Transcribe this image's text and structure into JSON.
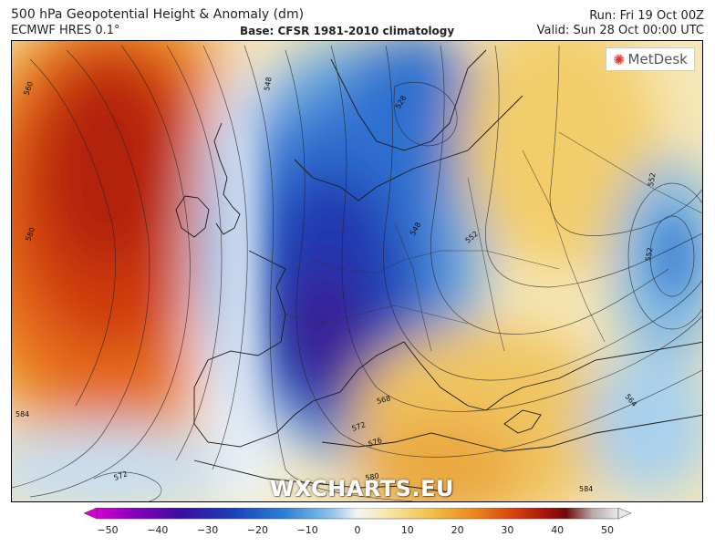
{
  "header": {
    "title": "500 hPa Geopotential Height & Anomaly (dm)",
    "subtitle": "ECMWF HRES 0.1°",
    "base": "Base: CFSR 1981-2010 climatology",
    "run": "Run: Fri 19 Oct 00Z",
    "valid": "Valid: Sun 28 Oct 00:00 UTC"
  },
  "logo": {
    "text": "MetDesk",
    "icon": "metdesk-logo-icon"
  },
  "watermark": "WXCHARTS.EU",
  "contour_labels": [
    "560",
    "548",
    "528",
    "580",
    "552",
    "552",
    "584",
    "568",
    "572",
    "576",
    "572",
    "564",
    "552",
    "548",
    "584",
    "580"
  ],
  "colorbar": {
    "ticks": [
      "−50",
      "−40",
      "−30",
      "−20",
      "−10",
      "0",
      "10",
      "20",
      "30",
      "40",
      "50"
    ],
    "range": [
      -50,
      50
    ],
    "colors": [
      "#d400d4",
      "#8a00c0",
      "#3a0ea0",
      "#1a3fb8",
      "#2d7fd6",
      "#8fc3ea",
      "#f4f4f4",
      "#f7e6a6",
      "#f3c04a",
      "#ec8a20",
      "#d8400e",
      "#a8140c",
      "#6e0a0a",
      "#b8a8a8",
      "#e8e8e8"
    ]
  }
}
